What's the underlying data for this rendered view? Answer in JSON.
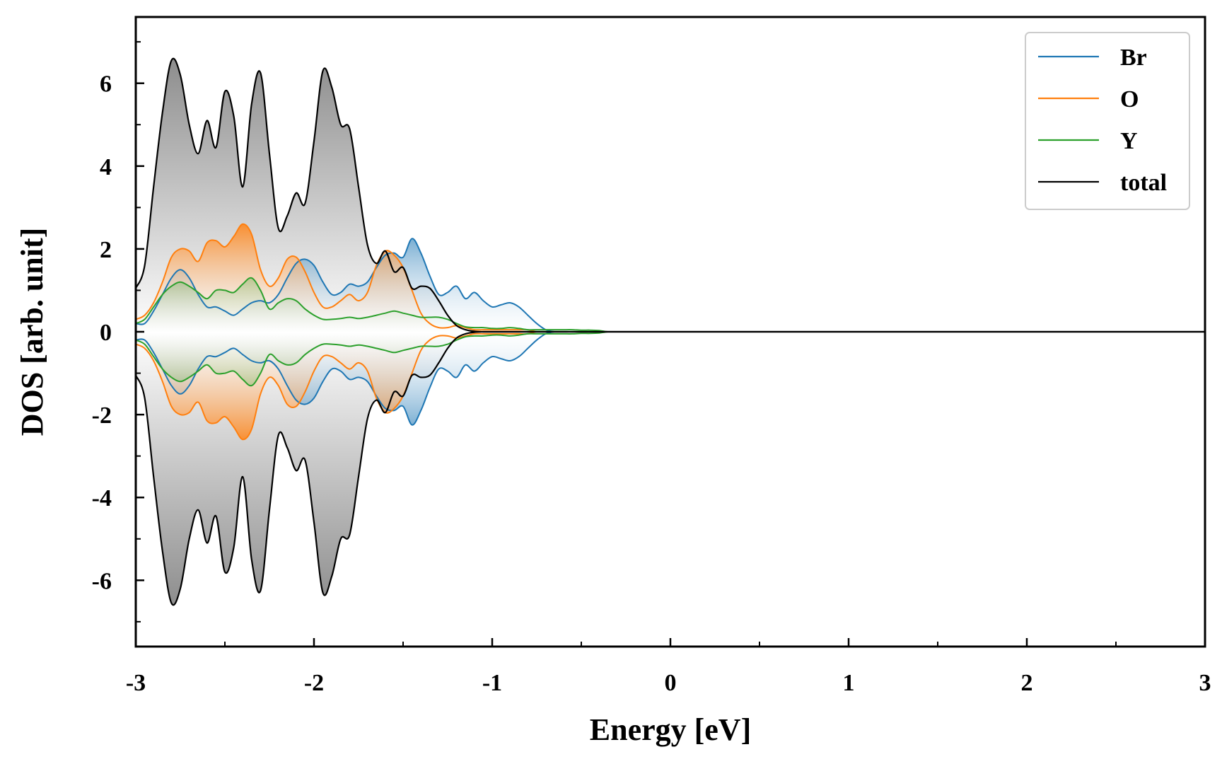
{
  "chart_data": {
    "type": "area",
    "xlabel": "Energy [eV]",
    "ylabel": "DOS [arb. unit]",
    "xlim": [
      -3,
      3
    ],
    "ylim": [
      -7.6,
      7.6
    ],
    "xticks": [
      -3,
      -2,
      -1,
      0,
      1,
      2,
      3
    ],
    "xtick_labels": [
      "-3",
      "-2",
      "-1",
      "0",
      "1",
      "2",
      "3"
    ],
    "yticks": [
      -6,
      -4,
      -2,
      0,
      2,
      4,
      6
    ],
    "ytick_labels": [
      "-6",
      "-4",
      "-2",
      "0",
      "2",
      "4",
      "6"
    ],
    "grid": false,
    "legend_position": "top-right",
    "mirrored": true,
    "series": [
      {
        "name": "Br",
        "color": "#1f77b4",
        "x": [
          -3.0,
          -2.95,
          -2.9,
          -2.85,
          -2.8,
          -2.75,
          -2.7,
          -2.65,
          -2.6,
          -2.55,
          -2.5,
          -2.45,
          -2.4,
          -2.35,
          -2.3,
          -2.25,
          -2.2,
          -2.15,
          -2.1,
          -2.05,
          -2.0,
          -1.95,
          -1.9,
          -1.85,
          -1.8,
          -1.75,
          -1.7,
          -1.65,
          -1.6,
          -1.55,
          -1.5,
          -1.45,
          -1.4,
          -1.35,
          -1.3,
          -1.25,
          -1.2,
          -1.15,
          -1.1,
          -1.05,
          -1.0,
          -0.95,
          -0.9,
          -0.85,
          -0.8,
          -0.75,
          -0.7,
          -0.65,
          -0.6,
          -0.55,
          -0.5,
          -0.45,
          -0.4,
          -0.35,
          -0.3,
          -0.25,
          -0.2,
          -0.15,
          -0.1,
          3.0
        ],
        "values": [
          0.2,
          0.2,
          0.5,
          0.9,
          1.3,
          1.5,
          1.3,
          0.9,
          0.6,
          0.6,
          0.5,
          0.4,
          0.55,
          0.7,
          0.75,
          0.7,
          0.9,
          1.3,
          1.65,
          1.75,
          1.6,
          1.2,
          0.9,
          0.95,
          1.15,
          1.1,
          1.2,
          1.55,
          1.85,
          1.9,
          1.8,
          2.25,
          1.9,
          1.35,
          0.9,
          0.95,
          1.1,
          0.8,
          0.95,
          0.75,
          0.6,
          0.65,
          0.7,
          0.6,
          0.4,
          0.2,
          0.05,
          0.0,
          0.0,
          0.0,
          0.0,
          0.0,
          0.0,
          0.0,
          0.0,
          0.0,
          0.0,
          0.0,
          0.0,
          0.0
        ]
      },
      {
        "name": "O",
        "color": "#ff7f0e",
        "x": [
          -3.0,
          -2.95,
          -2.9,
          -2.85,
          -2.8,
          -2.75,
          -2.7,
          -2.65,
          -2.6,
          -2.55,
          -2.5,
          -2.45,
          -2.4,
          -2.35,
          -2.3,
          -2.25,
          -2.2,
          -2.15,
          -2.1,
          -2.05,
          -2.0,
          -1.95,
          -1.9,
          -1.85,
          -1.8,
          -1.75,
          -1.7,
          -1.65,
          -1.6,
          -1.55,
          -1.5,
          -1.45,
          -1.4,
          -1.35,
          -1.3,
          -1.25,
          -1.2,
          -1.15,
          -1.1,
          -1.05,
          -1.0,
          -0.95,
          -0.9,
          -0.85,
          -0.8,
          -0.75,
          -0.7,
          -0.65,
          -0.6,
          -0.55,
          -0.5,
          -0.45,
          -0.4,
          -0.35,
          -0.3,
          -0.25,
          -0.2,
          -0.15,
          -0.1,
          3.0
        ],
        "values": [
          0.3,
          0.4,
          0.7,
          1.2,
          1.8,
          2.0,
          1.95,
          1.7,
          2.15,
          2.2,
          2.05,
          2.3,
          2.6,
          2.35,
          1.5,
          1.1,
          1.3,
          1.75,
          1.8,
          1.45,
          0.95,
          0.6,
          0.6,
          0.75,
          0.9,
          0.75,
          0.95,
          1.6,
          1.95,
          1.85,
          1.55,
          1.0,
          0.45,
          0.2,
          0.1,
          0.1,
          0.15,
          0.1,
          0.05,
          0.05,
          0.05,
          0.05,
          0.05,
          0.05,
          0.05,
          0.0,
          0.0,
          0.0,
          0.0,
          0.0,
          0.0,
          0.0,
          0.0,
          0.0,
          0.0,
          0.0,
          0.0,
          0.0,
          0.0,
          0.0
        ]
      },
      {
        "name": "Y",
        "color": "#2ca02c",
        "x": [
          -3.0,
          -2.95,
          -2.9,
          -2.85,
          -2.8,
          -2.75,
          -2.7,
          -2.65,
          -2.6,
          -2.55,
          -2.5,
          -2.45,
          -2.4,
          -2.35,
          -2.3,
          -2.25,
          -2.2,
          -2.15,
          -2.1,
          -2.05,
          -2.0,
          -1.95,
          -1.9,
          -1.85,
          -1.8,
          -1.75,
          -1.7,
          -1.65,
          -1.6,
          -1.55,
          -1.5,
          -1.45,
          -1.4,
          -1.35,
          -1.3,
          -1.25,
          -1.2,
          -1.15,
          -1.1,
          -1.05,
          -1.0,
          -0.95,
          -0.9,
          -0.85,
          -0.8,
          -0.75,
          -0.7,
          -0.65,
          -0.6,
          -0.55,
          -0.5,
          -0.45,
          -0.4,
          -0.35,
          -0.3,
          -0.25,
          -0.2,
          -0.15,
          -0.1,
          3.0
        ],
        "values": [
          0.2,
          0.3,
          0.6,
          0.9,
          1.1,
          1.2,
          1.1,
          0.95,
          0.8,
          1.0,
          1.0,
          0.95,
          1.15,
          1.3,
          1.0,
          0.55,
          0.7,
          0.8,
          0.75,
          0.55,
          0.4,
          0.3,
          0.3,
          0.32,
          0.35,
          0.32,
          0.35,
          0.4,
          0.45,
          0.5,
          0.45,
          0.4,
          0.35,
          0.35,
          0.35,
          0.3,
          0.2,
          0.12,
          0.1,
          0.1,
          0.08,
          0.08,
          0.1,
          0.08,
          0.05,
          0.05,
          0.05,
          0.05,
          0.05,
          0.05,
          0.04,
          0.04,
          0.03,
          0.0,
          0.0,
          0.0,
          0.0,
          0.0,
          0.0,
          0.0
        ]
      },
      {
        "name": "total",
        "color": "#000000",
        "x": [
          -3.0,
          -2.95,
          -2.9,
          -2.85,
          -2.8,
          -2.75,
          -2.7,
          -2.65,
          -2.6,
          -2.55,
          -2.5,
          -2.45,
          -2.4,
          -2.35,
          -2.3,
          -2.25,
          -2.2,
          -2.15,
          -2.1,
          -2.05,
          -2.0,
          -1.95,
          -1.9,
          -1.85,
          -1.8,
          -1.75,
          -1.7,
          -1.65,
          -1.6,
          -1.55,
          -1.5,
          -1.45,
          -1.4,
          -1.35,
          -1.3,
          -1.25,
          -1.2,
          -1.15,
          -1.1,
          -1.05,
          -1.0,
          -0.95,
          -0.9,
          -0.85,
          -0.8,
          -0.75,
          -0.7,
          -0.65,
          -0.6,
          -0.55,
          -0.5,
          -0.45,
          -0.4,
          -0.35,
          -0.3,
          -0.25,
          -0.2,
          -0.15,
          -0.1,
          3.0
        ],
        "values": [
          1.05,
          1.6,
          3.5,
          5.3,
          6.55,
          6.2,
          5.0,
          4.3,
          5.1,
          4.45,
          5.8,
          5.2,
          3.5,
          5.5,
          6.25,
          4.3,
          2.5,
          2.8,
          3.35,
          3.1,
          4.6,
          6.3,
          5.9,
          5.0,
          4.9,
          3.5,
          2.1,
          1.65,
          1.95,
          1.45,
          1.55,
          1.05,
          1.1,
          1.05,
          0.75,
          0.4,
          0.15,
          0.05,
          0.01,
          0.0,
          0.0,
          0.0,
          0.0,
          0.0,
          0.0,
          0.0,
          0.0,
          0.0,
          0.0,
          0.0,
          0.0,
          0.0,
          0.0,
          0.0,
          0.0,
          0.0,
          0.0,
          0.0,
          0.0,
          0.0
        ]
      }
    ]
  }
}
